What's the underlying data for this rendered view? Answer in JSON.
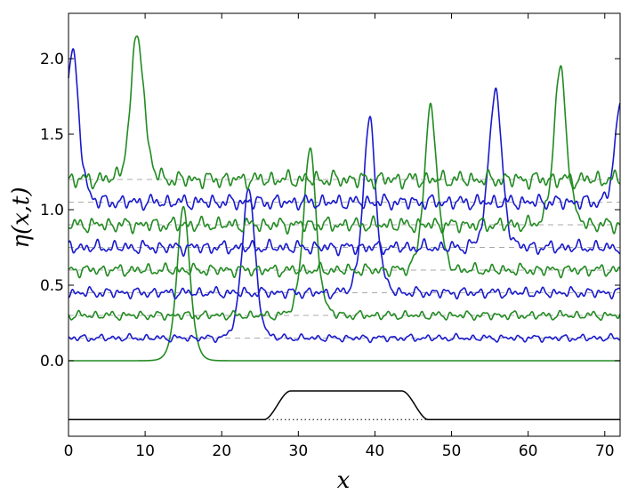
{
  "chart_data": {
    "type": "line",
    "xlabel": "x",
    "ylabel": "η(x,t)",
    "xlim": [
      0,
      72
    ],
    "ylim": [
      -0.5,
      2.3
    ],
    "xticks": [
      "0",
      "10",
      "20",
      "30",
      "40",
      "50",
      "60",
      "70"
    ],
    "yticks": [
      "0.0",
      "0.5",
      "1.0",
      "1.5",
      "2.0"
    ],
    "xtick_values": [
      0,
      10,
      20,
      30,
      40,
      50,
      60,
      70
    ],
    "ytick_values": [
      0.0,
      0.5,
      1.0,
      1.5,
      2.0
    ],
    "colors": {
      "green": "#228b22",
      "blue": "#1a1acd",
      "bathymetry": "#000000",
      "reference": "#aaaaaa"
    },
    "series": [
      {
        "color": "green",
        "offset": 0.0,
        "peak_x": 15.0,
        "peak_height": 1.02,
        "noise": 0.0
      },
      {
        "color": "blue",
        "offset": 0.15,
        "peak_x": 23.5,
        "peak_height": 1.0,
        "noise": 0.012
      },
      {
        "color": "green",
        "offset": 0.3,
        "peak_x": 31.5,
        "peak_height": 1.1,
        "noise": 0.015
      },
      {
        "color": "blue",
        "offset": 0.45,
        "peak_x": 39.3,
        "peak_height": 1.14,
        "noise": 0.018
      },
      {
        "color": "green",
        "offset": 0.6,
        "peak_x": 47.3,
        "peak_height": 1.08,
        "noise": 0.02
      },
      {
        "color": "blue",
        "offset": 0.75,
        "peak_x": 55.7,
        "peak_height": 1.05,
        "noise": 0.022
      },
      {
        "color": "green",
        "offset": 0.9,
        "peak_x": 64.2,
        "peak_height": 1.03,
        "noise": 0.025
      },
      {
        "color": "blue",
        "offset": 1.05,
        "peak_x": 0.5,
        "peak_height": 1.0,
        "noise": 0.025,
        "wrap_peak_x": 72.0,
        "wrap_peak_height": 0.64
      },
      {
        "color": "green",
        "offset": 1.2,
        "peak_x": 9.0,
        "peak_height": 0.97,
        "noise": 0.028
      }
    ],
    "bathymetry": {
      "base": -0.39,
      "plateau": -0.2,
      "rise_start": 25.5,
      "rise_end": 29.0,
      "fall_start": 43.5,
      "fall_end": 47.0
    },
    "reference_levels": [
      0.15,
      0.3,
      0.45,
      0.6,
      0.75,
      0.9,
      1.05,
      1.2
    ]
  }
}
